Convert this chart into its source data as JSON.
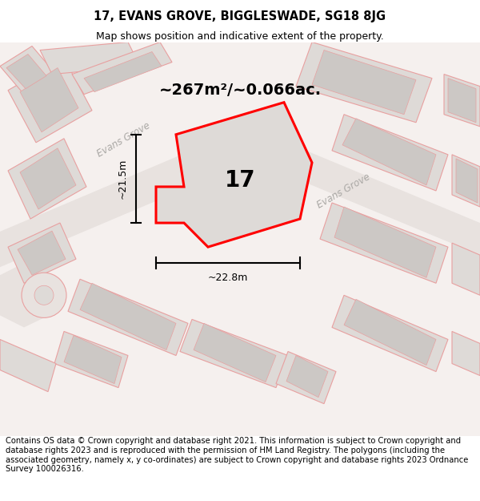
{
  "title": "17, EVANS GROVE, BIGGLESWADE, SG18 8JG",
  "subtitle": "Map shows position and indicative extent of the property.",
  "footer": "Contains OS data © Crown copyright and database right 2021. This information is subject to Crown copyright and database rights 2023 and is reproduced with the permission of HM Land Registry. The polygons (including the associated geometry, namely x, y co-ordinates) are subject to Crown copyright and database rights 2023 Ordnance Survey 100026316.",
  "area_label": "~267m²/~0.066ac.",
  "number_label": "17",
  "dim_height": "~21.5m",
  "dim_width": "~22.8m",
  "street_label1": "Evans Grove",
  "street_label2": "Evans Grove",
  "title_fontsize": 10.5,
  "subtitle_fontsize": 9,
  "footer_fontsize": 7.2,
  "area_fontsize": 14,
  "number_fontsize": 20,
  "dim_fontsize": 9,
  "street_fontsize": 8.5,
  "map_bg": "#f5f0ee",
  "road_fill": "#e8e2df",
  "plot_fill": "#dedad7",
  "building_fill": "#ccc8c5",
  "outline_color": "#e8a0a0",
  "plot_edge": "#ff0000",
  "text_color": "#000000",
  "street_color": "#aaa8a5"
}
